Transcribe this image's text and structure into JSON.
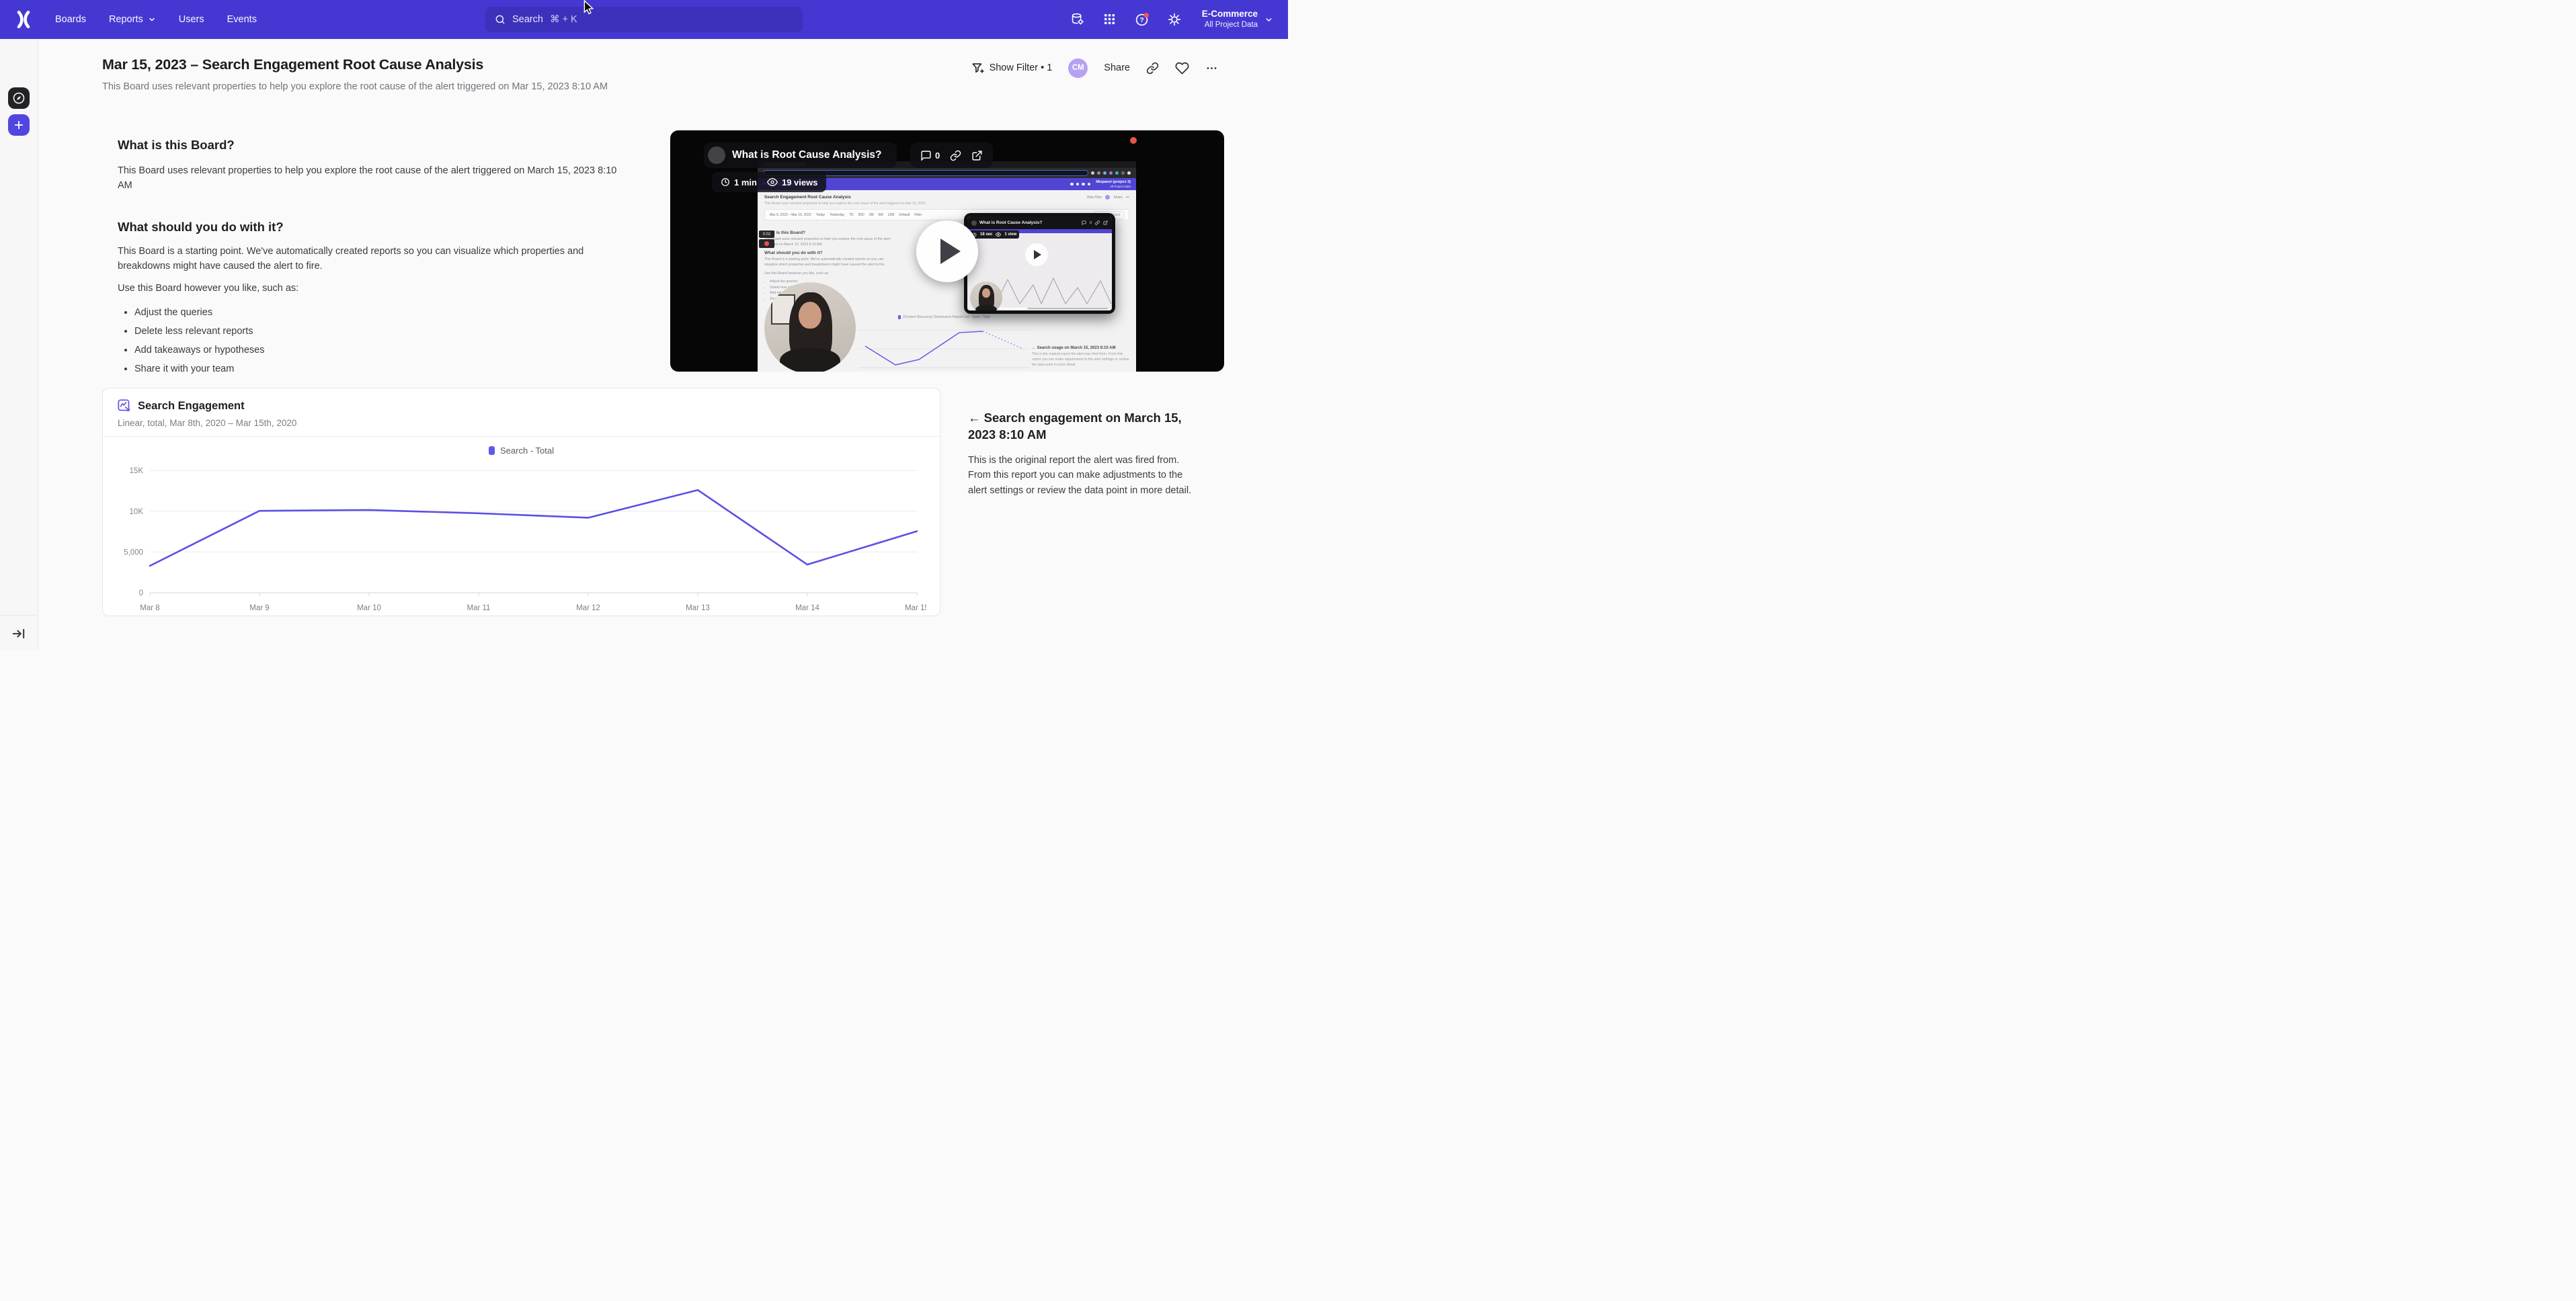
{
  "nav": {
    "items": [
      {
        "label": "Boards"
      },
      {
        "label": "Reports"
      },
      {
        "label": "Users"
      },
      {
        "label": "Events"
      }
    ],
    "search": {
      "label": "Search",
      "shortcut": "⌘ + K"
    },
    "project": {
      "name": "E-Commerce",
      "scope": "All Project Data"
    }
  },
  "board": {
    "title": "Mar 15, 2023 – Search Engagement Root Cause Analysis",
    "subtitle": "This Board uses relevant properties to help you explore the root cause of the alert triggered on Mar 15, 2023 8:10 AM",
    "controls": {
      "show_filter": "Show Filter • 1",
      "avatar": "CM",
      "share": "Share"
    }
  },
  "doc": {
    "h1": "What is this Board?",
    "p1": "This Board uses relevant properties to help you explore the root cause of the alert triggered on March 15, 2023 8:10 AM",
    "h2": "What should you do with it?",
    "p2": "This Board is a starting point. We've automatically created reports so you can visualize which properties and breakdowns might have caused the alert to fire.",
    "p3": "Use this Board however you like, such as:",
    "bullets": [
      "Adjust the queries",
      "Delete less relevant reports",
      "Add takeaways or hypotheses",
      "Share it with your team"
    ]
  },
  "video": {
    "title": "What is Root Cause Analysis?",
    "comments": "0",
    "duration": "1 min",
    "views": "19 views",
    "preview": {
      "board_title": "Search Engagement Root Cause Analysis",
      "board_subtitle": "This Board uses relevant properties to help you explore the root cause of the alert triggered on Mar 15, 2023",
      "hide_filter": "Hide Filter",
      "share": "Share",
      "more": "•••",
      "date_range": "Mar 9, 2023 – Mar 15, 2023",
      "ranges": [
        "Today",
        "Yesterday",
        "7D",
        "30D",
        "3M",
        "6M",
        "12M",
        "Default"
      ],
      "filter": "Filter",
      "save": "Save to Board",
      "menu": "Boards    Reports    Users    Events",
      "project": "Mixpanel (project 3)",
      "project_scope": "All Project Data",
      "rec_time": "0:02",
      "h1": "What is this Board?",
      "p1": "This Board uses relevant properties to help you explore the root cause of the alert triggered on March 15, 2023 8:10 AM",
      "h2": "What should you do with it?",
      "p2": "This Board is a starting point. We've automatically created reports so you can visualize which properties and breakdowns might have caused the alert to fire.",
      "p3": "Use this Board however you like, such as:",
      "bullets": [
        "Adjust the queries",
        "Delete less relevant reports",
        "Add takeaways or hypotheses",
        "Share it with your team"
      ],
      "legend": "[Content Discovery] Omnisearch Report List - Open - Total",
      "note_h": "← Search usage on March 15, 2023 8:10 AM",
      "note_p": "This is the original report the alert was fired from. From this report you can make adjustments to the alert settings or review the data point in more detail.",
      "chart_solid": "10,38 55,66 90,58 150,18 185,16",
      "chart_dotted": "185,16 245,42"
    },
    "inset": {
      "title": "What is Root Cause Analysis?",
      "comments": "0",
      "duration": "18 sec",
      "views": "1 view",
      "zigzag": "0,58 18,26 36,58 54,22 72,58 92,30 104,58 122,20 140,58 158,34 172,58 192,24 208,58"
    }
  },
  "report": {
    "title": "Search Engagement",
    "subtitle": "Linear, total, Mar 8th, 2020 – Mar 15th, 2020"
  },
  "chart_data": {
    "type": "line",
    "title": "Search Engagement",
    "categories": [
      "Mar 8",
      "Mar 9",
      "Mar 10",
      "Mar 11",
      "Mar 12",
      "Mar 13",
      "Mar 14",
      "Mar 15"
    ],
    "series": [
      {
        "name": "Search - Total",
        "values": [
          3300,
          10050,
          10150,
          9750,
          9200,
          12600,
          3450,
          7550
        ]
      }
    ],
    "legend": "Search - Total",
    "xlabel": "",
    "ylabel": "",
    "ylim": [
      0,
      16000
    ],
    "gridlines": [
      {
        "value": 0,
        "label": "0"
      },
      {
        "value": 5000,
        "label": "5,000"
      },
      {
        "value": 10000,
        "label": "10K"
      },
      {
        "value": 15000,
        "label": "15K"
      }
    ],
    "line_color": "#5b50e4",
    "grid": true,
    "legend_position": "top-center"
  },
  "side_note": {
    "heading": "← Search engagement on March 15, 2023 8:10 AM",
    "body": "This is the original report the alert was fired from. From this report you can make adjustments to the alert settings or review the data point in more detail."
  }
}
